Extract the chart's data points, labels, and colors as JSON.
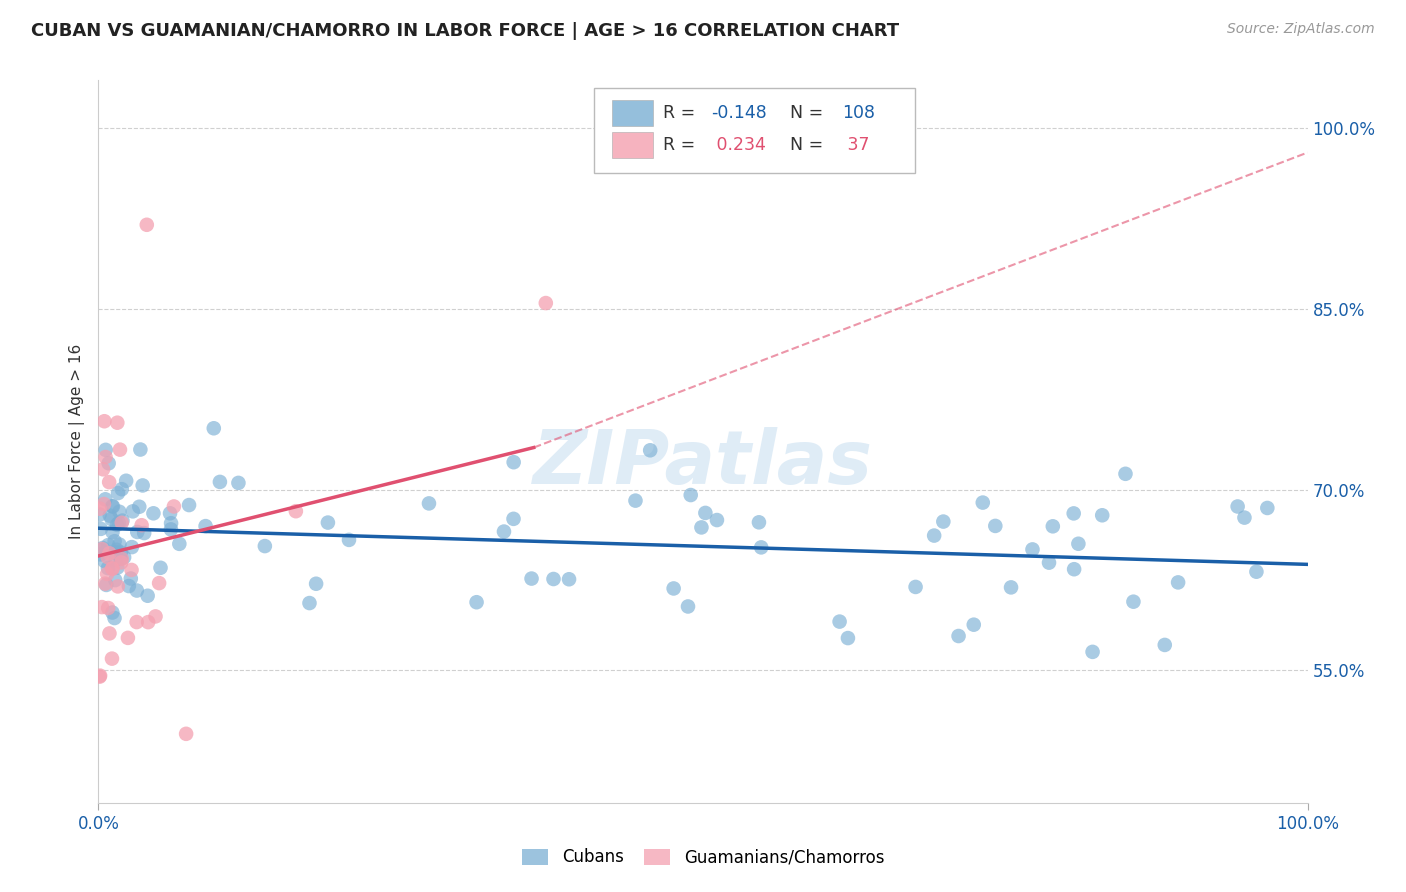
{
  "title": "CUBAN VS GUAMANIAN/CHAMORRO IN LABOR FORCE | AGE > 16 CORRELATION CHART",
  "source": "Source: ZipAtlas.com",
  "ylabel": "In Labor Force | Age > 16",
  "xlim": [
    0.0,
    1.0
  ],
  "ylim": [
    0.44,
    1.04
  ],
  "yticks": [
    0.55,
    0.7,
    0.85,
    1.0
  ],
  "ytick_labels": [
    "55.0%",
    "70.0%",
    "85.0%",
    "100.0%"
  ],
  "xtick_labels": [
    "0.0%",
    "100.0%"
  ],
  "watermark": "ZIPatlas",
  "blue_R": -0.148,
  "blue_N": 108,
  "pink_R": 0.234,
  "pink_N": 37,
  "blue_color": "#7bafd4",
  "pink_color": "#f4a0b0",
  "blue_line_color": "#1a5fa8",
  "pink_line_color": "#e05070",
  "legend_label_blue": "Cubans",
  "legend_label_pink": "Guamanians/Chamorros",
  "blue_line_x0": 0.0,
  "blue_line_x1": 1.0,
  "blue_line_y0": 0.668,
  "blue_line_y1": 0.638,
  "pink_line_x0": 0.0,
  "pink_line_solid_x1": 0.36,
  "pink_line_x1": 1.0,
  "pink_line_y0": 0.645,
  "pink_line_y_solid_end": 0.735,
  "pink_line_y1": 0.98
}
